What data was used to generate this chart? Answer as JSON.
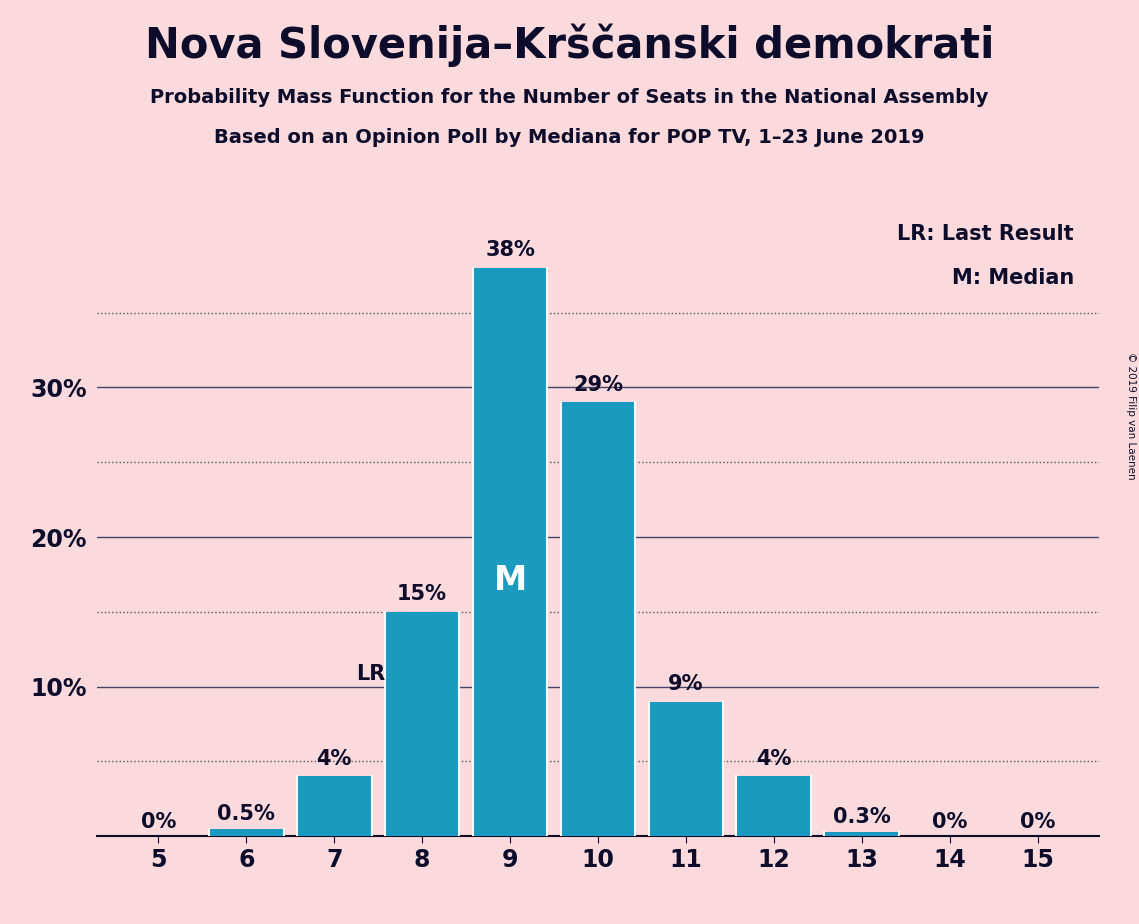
{
  "title": "Nova Slovenija–Krščanski demokrati",
  "subtitle1": "Probability Mass Function for the Number of Seats in the National Assembly",
  "subtitle2": "Based on an Opinion Poll by Mediana for POP TV, 1–23 June 2019",
  "copyright": "© 2019 Filip van Laenen",
  "seats": [
    5,
    6,
    7,
    8,
    9,
    10,
    11,
    12,
    13,
    14,
    15
  ],
  "probabilities": [
    0.0,
    0.5,
    4.0,
    15.0,
    38.0,
    29.0,
    9.0,
    4.0,
    0.3,
    0.0,
    0.0
  ],
  "bar_color": "#1a9abf",
  "background_color": "#fadadd",
  "text_color": "#0d0d2b",
  "bar_labels": [
    "0%",
    "0.5%",
    "4%",
    "15%",
    "38%",
    "29%",
    "9%",
    "4%",
    "0.3%",
    "0%",
    "0%"
  ],
  "median_seat": 9,
  "lr_seat": 8,
  "lr_label": "LR",
  "median_label": "M",
  "legend_lr": "LR: Last Result",
  "legend_m": "M: Median",
  "ylim_max": 42,
  "solid_gridlines": [
    10,
    20,
    30
  ],
  "dotted_gridlines": [
    5,
    15,
    25,
    35
  ]
}
